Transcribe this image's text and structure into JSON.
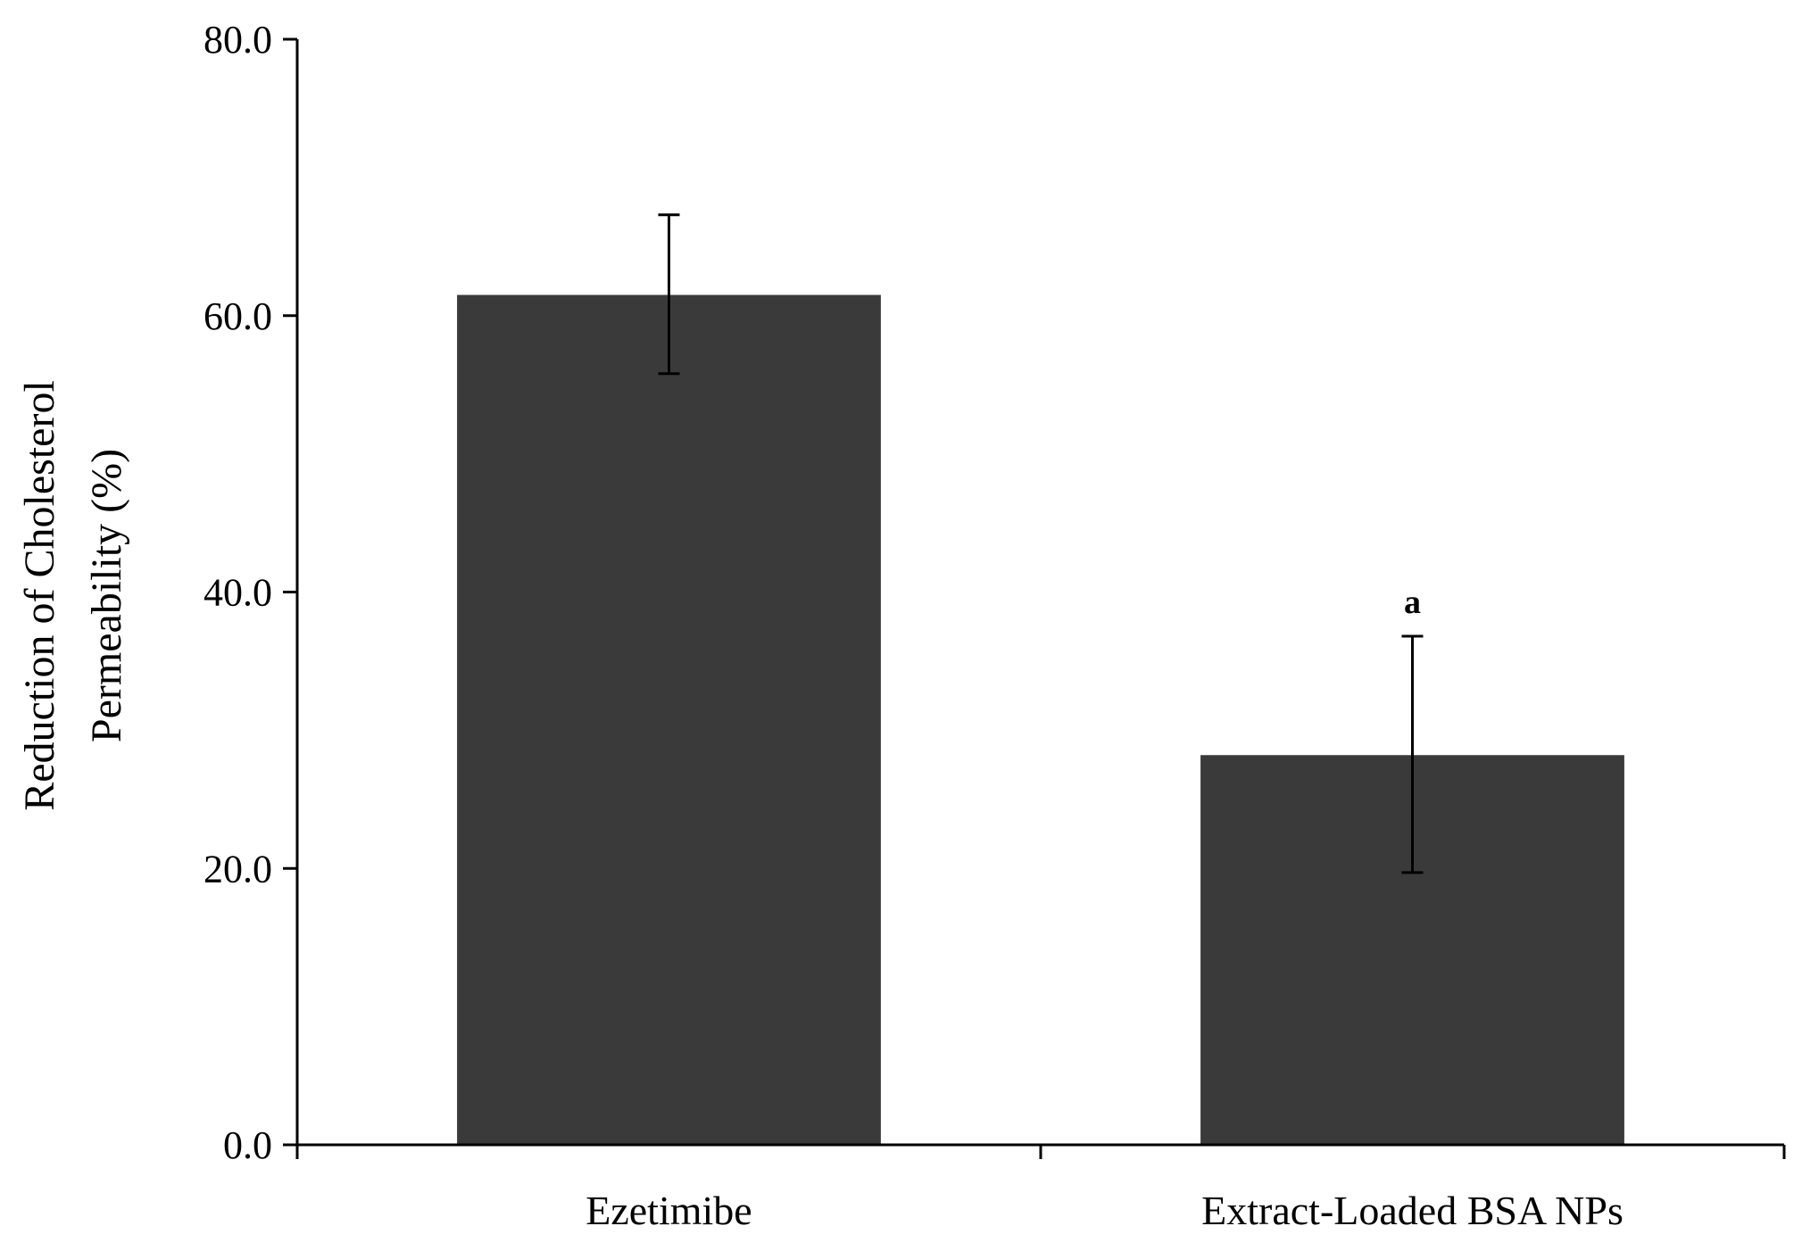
{
  "chart_data": {
    "type": "bar",
    "title": "",
    "xlabel": "",
    "ylabel_lines": [
      "Reduction of Cholesterol",
      "Permeability (%)"
    ],
    "categories": [
      "Ezetimibe",
      "Extract-Loaded BSA NPs"
    ],
    "values": [
      61.5,
      28.2
    ],
    "error_low": [
      55.8,
      19.7
    ],
    "error_high": [
      67.3,
      36.8
    ],
    "annotations": [
      "",
      "a"
    ],
    "ylim": [
      0,
      80
    ],
    "yticks": [
      0,
      20,
      40,
      60,
      80
    ],
    "ytick_labels": [
      "0.0",
      "20.0",
      "40.0",
      "60.0",
      "80.0"
    ],
    "grid": false,
    "bar_color": "#3a3a3a",
    "axis_color": "#000000"
  }
}
